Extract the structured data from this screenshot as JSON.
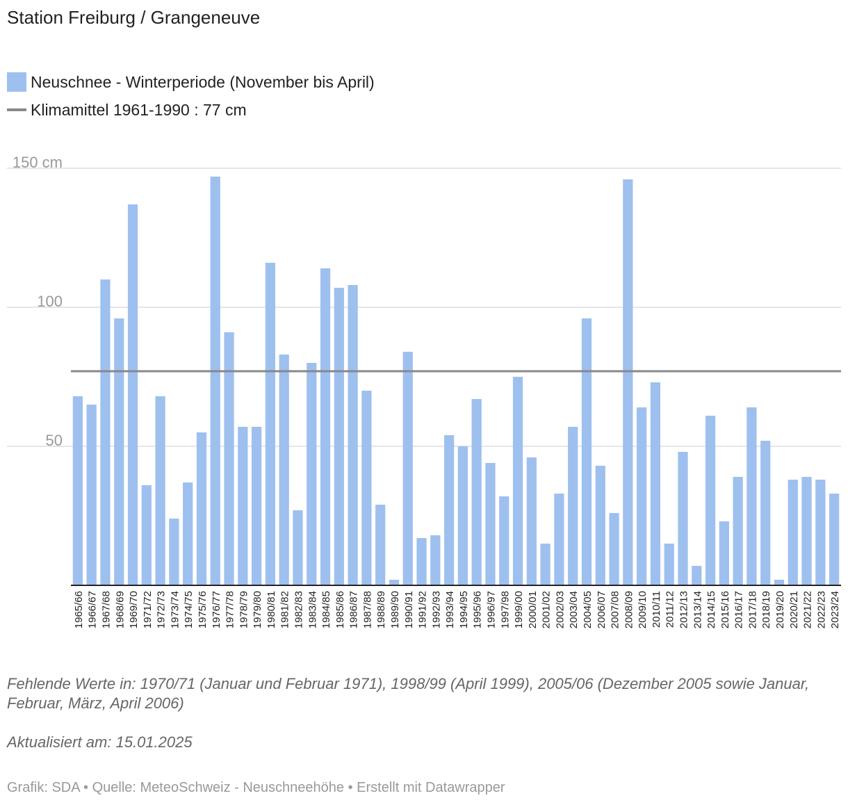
{
  "header": {
    "title": "Station Freiburg / Grangeneuve"
  },
  "legend": {
    "bars_label": "Neuschnee - Winterperiode (November bis April)",
    "line_label": "Klimamittel 1961-1990 : 77 cm"
  },
  "colors": {
    "bar": "#9ec0ee",
    "reference_line": "#888888",
    "grid": "#dddddd",
    "axis": "#222222"
  },
  "chart_data": {
    "type": "bar",
    "categories": [
      "1965/66",
      "1966/67",
      "1967/68",
      "1968/69",
      "1969/70",
      "1971/72",
      "1972/73",
      "1973/74",
      "1974/75",
      "1975/76",
      "1976/77",
      "1977/78",
      "1978/79",
      "1979/80",
      "1980/81",
      "1981/82",
      "1982/83",
      "1983/84",
      "1984/85",
      "1985/86",
      "1986/87",
      "1987/88",
      "1988/89",
      "1989/90",
      "1990/91",
      "1991/92",
      "1992/93",
      "1993/94",
      "1994/95",
      "1995/96",
      "1996/97",
      "1997/98",
      "1999/00",
      "2000/01",
      "2001/02",
      "2002/03",
      "2003/04",
      "2004/05",
      "2006/07",
      "2007/08",
      "2008/09",
      "2009/10",
      "2010/11",
      "2011/12",
      "2012/13",
      "2013/14",
      "2014/15",
      "2015/16",
      "2016/17",
      "2017/18",
      "2018/19",
      "2019/20",
      "2020/21",
      "2021/22",
      "2022/23",
      "2023/24"
    ],
    "series": [
      {
        "name": "Neuschnee - Winterperiode (November bis April)",
        "values": [
          68,
          65,
          110,
          96,
          137,
          36,
          68,
          24,
          37,
          55,
          147,
          91,
          57,
          57,
          116,
          83,
          27,
          80,
          114,
          107,
          108,
          70,
          29,
          2,
          84,
          17,
          18,
          54,
          50,
          67,
          44,
          32,
          75,
          46,
          15,
          33,
          57,
          96,
          43,
          26,
          146,
          64,
          73,
          15,
          48,
          7,
          61,
          23,
          39,
          64,
          52,
          2,
          38,
          39,
          38,
          33
        ]
      }
    ],
    "reference_line": {
      "name": "Klimamittel 1961-1990 : 77 cm",
      "value": 77
    },
    "yticks": [
      {
        "value": 150,
        "label": "150 cm"
      },
      {
        "value": 100,
        "label": "100"
      },
      {
        "value": 50,
        "label": "50"
      }
    ],
    "ylim": [
      0,
      150
    ],
    "grid": true,
    "legend_position": "top-left"
  },
  "notes": {
    "missing": "Fehlende Werte in: 1970/71 (Januar und Februar 1971), 1998/99 (April 1999), 2005/06 (Dezember 2005 sowie Januar, Februar, März, April 2006)",
    "updated": "Aktualisiert am: 15.01.2025"
  },
  "footer": {
    "source": "Grafik: SDA • Quelle: MeteoSchweiz - Neuschneehöhe • Erstellt mit Datawrapper"
  }
}
